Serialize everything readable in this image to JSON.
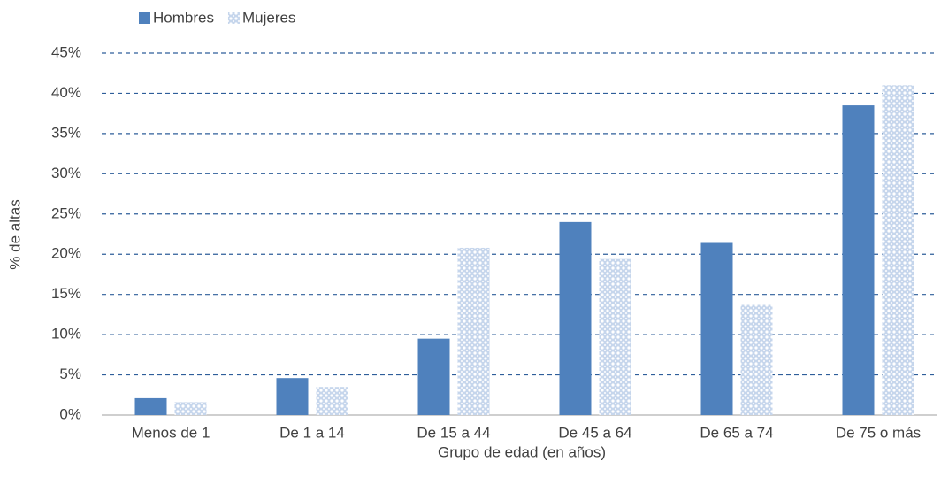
{
  "chart_data": {
    "type": "bar",
    "x_label": "Grupo de edad (en años)",
    "y_label": "% de altas",
    "categories": [
      "Menos de 1",
      "De 1 a 14",
      "De 15 a 44",
      "De 45 a 64",
      "De 65 a 74",
      "De 75 o más"
    ],
    "series": [
      {
        "name": "Hombres",
        "color": "#4f81bd",
        "values": [
          2.1,
          4.6,
          9.5,
          24.0,
          21.4,
          38.5
        ]
      },
      {
        "name": "Mujeres",
        "color": "#95b3d7",
        "pattern": "dots",
        "values": [
          1.6,
          3.5,
          20.8,
          19.4,
          13.7,
          41.0
        ]
      }
    ],
    "ylim": [
      0,
      45
    ],
    "yticks": [
      {
        "value": 0,
        "label": "0%"
      },
      {
        "value": 5,
        "label": "5%"
      },
      {
        "value": 10,
        "label": "10%"
      },
      {
        "value": 15,
        "label": "15%"
      },
      {
        "value": 20,
        "label": "20%"
      },
      {
        "value": 25,
        "label": "25%"
      },
      {
        "value": 30,
        "label": "30%"
      },
      {
        "value": 35,
        "label": "35%"
      },
      {
        "value": 40,
        "label": "40%"
      },
      {
        "value": 45,
        "label": "45%"
      }
    ],
    "grid": true,
    "legend": "top-left"
  }
}
